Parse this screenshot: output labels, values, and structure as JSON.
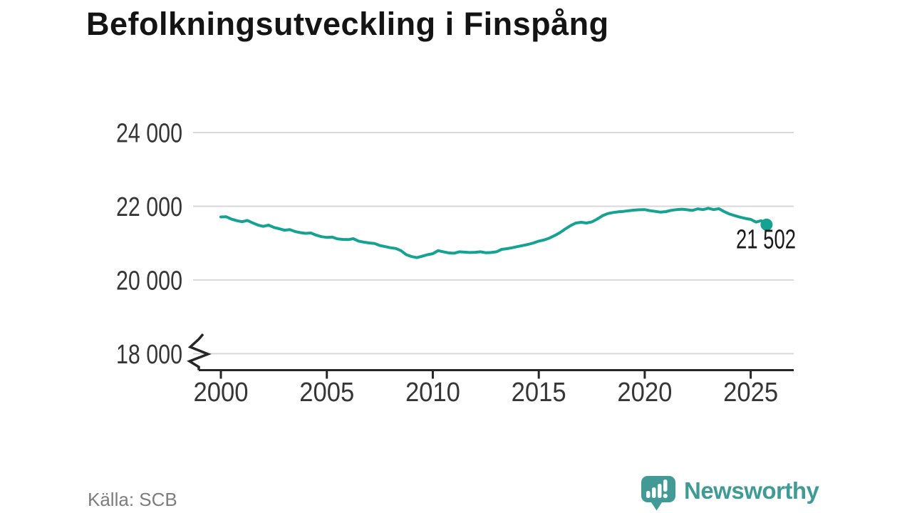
{
  "title": "Befolkningsutveckling i Finspång",
  "source": "Källa: SCB",
  "branding": {
    "name": "Newsworthy",
    "logo_icon": "bar-chart-speech-bubble-icon"
  },
  "colors": {
    "line": "#16a292",
    "grid": "#d9d9d9",
    "axis": "#262626",
    "tick_label": "#363636",
    "title": "#141414",
    "source": "#7d7d7d",
    "end_label": "#1a1a1a",
    "brand_icon": "#429a96",
    "brand_text": "#409b95"
  },
  "chart_data": {
    "type": "line",
    "title": "Befolkningsutveckling i Finspång",
    "xlabel": "",
    "ylabel": "",
    "grid": "horizontal",
    "axis_break_bottom_left": true,
    "x_ticks": [
      2000,
      2005,
      2010,
      2015,
      2020,
      2025
    ],
    "x_tick_labels": [
      "2000",
      "2005",
      "2010",
      "2015",
      "2020",
      "2025"
    ],
    "y_ticks": [
      24000,
      22000,
      20000,
      18000
    ],
    "y_tick_labels": [
      "24 000",
      "22 000",
      "20 000",
      "18 000"
    ],
    "xlim": [
      1998.7,
      2027
    ],
    "ylim_display": [
      18000,
      24400
    ],
    "end_value": 21502,
    "end_label": "21 502",
    "series": [
      {
        "name": "Befolkning",
        "points": [
          [
            2000.0,
            21710
          ],
          [
            2000.25,
            21715
          ],
          [
            2000.5,
            21650
          ],
          [
            2000.75,
            21610
          ],
          [
            2001.0,
            21580
          ],
          [
            2001.25,
            21615
          ],
          [
            2001.5,
            21550
          ],
          [
            2001.75,
            21490
          ],
          [
            2002.0,
            21455
          ],
          [
            2002.25,
            21490
          ],
          [
            2002.5,
            21425
          ],
          [
            2002.75,
            21390
          ],
          [
            2003.0,
            21350
          ],
          [
            2003.25,
            21365
          ],
          [
            2003.5,
            21315
          ],
          [
            2003.75,
            21285
          ],
          [
            2004.0,
            21265
          ],
          [
            2004.25,
            21275
          ],
          [
            2004.5,
            21215
          ],
          [
            2004.75,
            21175
          ],
          [
            2005.0,
            21155
          ],
          [
            2005.25,
            21165
          ],
          [
            2005.5,
            21115
          ],
          [
            2005.75,
            21100
          ],
          [
            2006.0,
            21095
          ],
          [
            2006.25,
            21120
          ],
          [
            2006.5,
            21055
          ],
          [
            2006.75,
            21025
          ],
          [
            2007.0,
            21005
          ],
          [
            2007.25,
            20990
          ],
          [
            2007.5,
            20935
          ],
          [
            2007.75,
            20905
          ],
          [
            2008.0,
            20875
          ],
          [
            2008.25,
            20855
          ],
          [
            2008.5,
            20795
          ],
          [
            2008.75,
            20685
          ],
          [
            2009.0,
            20635
          ],
          [
            2009.25,
            20605
          ],
          [
            2009.5,
            20645
          ],
          [
            2009.75,
            20685
          ],
          [
            2010.0,
            20715
          ],
          [
            2010.25,
            20795
          ],
          [
            2010.5,
            20765
          ],
          [
            2010.75,
            20735
          ],
          [
            2011.0,
            20725
          ],
          [
            2011.25,
            20765
          ],
          [
            2011.5,
            20755
          ],
          [
            2011.75,
            20745
          ],
          [
            2012.0,
            20750
          ],
          [
            2012.25,
            20765
          ],
          [
            2012.5,
            20740
          ],
          [
            2012.75,
            20745
          ],
          [
            2013.0,
            20765
          ],
          [
            2013.25,
            20830
          ],
          [
            2013.5,
            20850
          ],
          [
            2013.75,
            20875
          ],
          [
            2014.0,
            20905
          ],
          [
            2014.25,
            20935
          ],
          [
            2014.5,
            20965
          ],
          [
            2014.75,
            21005
          ],
          [
            2015.0,
            21055
          ],
          [
            2015.25,
            21085
          ],
          [
            2015.5,
            21135
          ],
          [
            2015.75,
            21205
          ],
          [
            2016.0,
            21285
          ],
          [
            2016.25,
            21385
          ],
          [
            2016.5,
            21475
          ],
          [
            2016.75,
            21545
          ],
          [
            2017.0,
            21565
          ],
          [
            2017.25,
            21545
          ],
          [
            2017.5,
            21575
          ],
          [
            2017.75,
            21650
          ],
          [
            2018.0,
            21740
          ],
          [
            2018.25,
            21800
          ],
          [
            2018.5,
            21830
          ],
          [
            2018.75,
            21850
          ],
          [
            2019.0,
            21860
          ],
          [
            2019.25,
            21880
          ],
          [
            2019.5,
            21895
          ],
          [
            2019.75,
            21905
          ],
          [
            2020.0,
            21910
          ],
          [
            2020.25,
            21880
          ],
          [
            2020.5,
            21860
          ],
          [
            2020.75,
            21840
          ],
          [
            2021.0,
            21855
          ],
          [
            2021.25,
            21890
          ],
          [
            2021.5,
            21910
          ],
          [
            2021.75,
            21920
          ],
          [
            2022.0,
            21905
          ],
          [
            2022.25,
            21885
          ],
          [
            2022.5,
            21930
          ],
          [
            2022.75,
            21910
          ],
          [
            2023.0,
            21945
          ],
          [
            2023.25,
            21910
          ],
          [
            2023.5,
            21935
          ],
          [
            2023.75,
            21855
          ],
          [
            2024.0,
            21790
          ],
          [
            2024.25,
            21745
          ],
          [
            2024.5,
            21705
          ],
          [
            2024.75,
            21670
          ],
          [
            2025.0,
            21645
          ],
          [
            2025.25,
            21570
          ],
          [
            2025.5,
            21610
          ],
          [
            2025.75,
            21502
          ]
        ]
      }
    ]
  }
}
